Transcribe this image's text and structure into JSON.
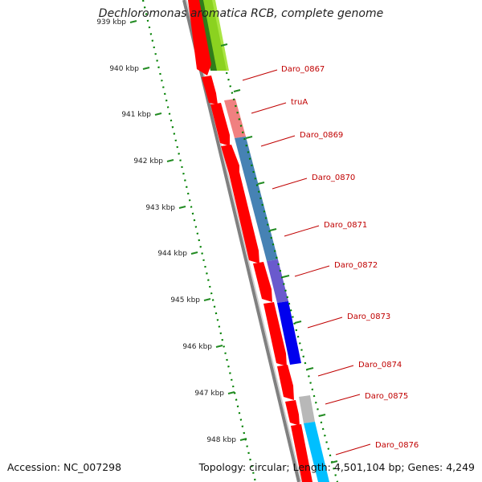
{
  "title": "Dechloromonas aromatica RCB, complete genome",
  "footer": {
    "accession": "Accession: NC_007298",
    "summary": "Topology: circular; Length: 4,501,104 bp; Genes: 4,249"
  },
  "ticks": [
    "939 kbp",
    "940 kbp",
    "941 kbp",
    "942 kbp",
    "943 kbp",
    "944 kbp",
    "945 kbp",
    "946 kbp",
    "947 kbp",
    "948 kbp"
  ],
  "genes": [
    {
      "label": "Daro_0867"
    },
    {
      "label": "truA"
    },
    {
      "label": "Daro_0869"
    },
    {
      "label": "Daro_0870"
    },
    {
      "label": "Daro_0871"
    },
    {
      "label": "Daro_0872"
    },
    {
      "label": "Daro_0873"
    },
    {
      "label": "Daro_0874"
    },
    {
      "label": "Daro_0875"
    },
    {
      "label": "Daro_0876"
    }
  ],
  "colors": {
    "backbone": "#808080",
    "cds_arrow": "#ff0000",
    "label": "#c00000",
    "tick": "#228b22",
    "dots": "#008000"
  }
}
